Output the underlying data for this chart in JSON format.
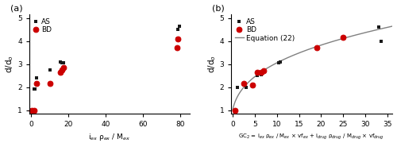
{
  "panel_a": {
    "AS_x": [
      1.5,
      2.0,
      3.0,
      10.0,
      15.5,
      16.5,
      17.5,
      78.0,
      78.5,
      79.5
    ],
    "AS_y": [
      1.93,
      1.93,
      2.4,
      2.75,
      3.1,
      3.05,
      3.07,
      4.1,
      4.5,
      4.65
    ],
    "BD_x": [
      0.5,
      1.5,
      3.0,
      10.0,
      15.5,
      16.5,
      17.5,
      78.0,
      78.5
    ],
    "BD_y": [
      1.0,
      1.0,
      2.15,
      2.15,
      2.65,
      2.75,
      2.85,
      3.72,
      4.1
    ],
    "xlabel": "i$_{ex}$ ρ$_{ex}$ / M$_{ex}$",
    "ylabel": "d/d$_o$",
    "xlim": [
      -1,
      85
    ],
    "ylim": [
      0.85,
      5.15
    ],
    "xticks": [
      0,
      20,
      40,
      60,
      80
    ],
    "yticks": [
      1,
      2,
      3,
      4,
      5
    ],
    "label": "(a)"
  },
  "panel_b": {
    "AS_x": [
      1.0,
      3.0,
      5.5,
      6.5,
      10.5,
      10.8,
      25.0,
      33.0,
      33.5
    ],
    "AS_y": [
      2.0,
      2.0,
      2.5,
      2.55,
      3.05,
      3.08,
      4.15,
      4.6,
      4.0
    ],
    "BD_x": [
      0.5,
      2.5,
      4.5,
      5.5,
      6.5,
      7.0,
      19.0,
      25.0
    ],
    "BD_y": [
      1.0,
      2.15,
      2.1,
      2.65,
      2.65,
      2.7,
      3.7,
      4.15
    ],
    "xlabel": "GC$_2$ = i$_{ex}$ ρ$_{ex}$ / M$_{ex}$ × vf$_{ex}$ + i$_{drug}$ ρ$_{drug}$ / M$_{drug}$ × vf$_{drug}$",
    "ylabel": "d/d$_o$",
    "xlim": [
      -0.3,
      36
    ],
    "ylim": [
      0.85,
      5.15
    ],
    "xticks": [
      0,
      5,
      10,
      15,
      20,
      25,
      30,
      35
    ],
    "yticks": [
      1,
      2,
      3,
      4,
      5
    ],
    "label": "(b)",
    "eq_label": "Equation (22)",
    "curve_k": 2.75,
    "curve_exp": 0.3333
  },
  "AS_color": "#1a1a1a",
  "BD_color": "#cc0000",
  "curve_color": "#808080",
  "marker_size_sq": 3.5,
  "marker_size_ci": 5.0,
  "fig_width": 5.0,
  "fig_height": 1.85,
  "dpi": 100
}
